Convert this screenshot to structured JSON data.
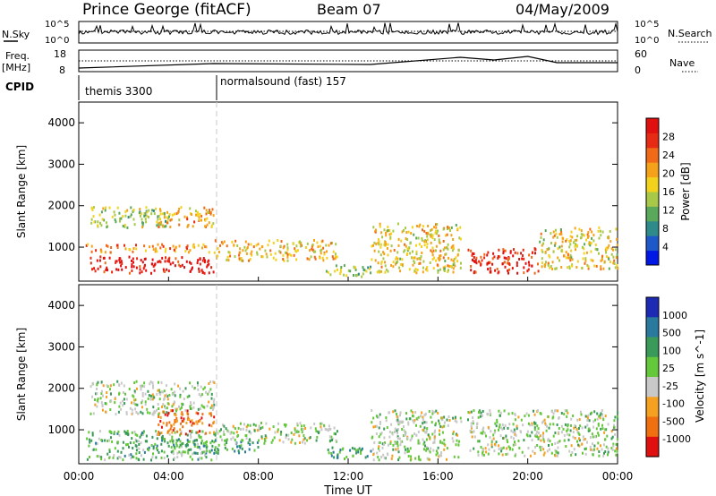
{
  "header": {
    "station": "Prince George (fitACF)",
    "beam": "Beam 07",
    "date": "04/May/2009"
  },
  "sky_panel": {
    "left_label": "N.Sky",
    "right_label": "N.Search",
    "ticks": [
      "10^5",
      "10^0"
    ]
  },
  "freq_panel": {
    "left_label_line1": "Freq.",
    "left_label_line2": "[MHz]",
    "left_ticks": [
      "18",
      "8"
    ],
    "right_label": "Nave",
    "right_ticks": [
      "60",
      "0"
    ]
  },
  "cpid_panel": {
    "label": "CPID",
    "segments": [
      {
        "name": "themis 3300",
        "start_hour": 0
      },
      {
        "name": "normalsound (fast) 157",
        "start_hour": 6
      }
    ]
  },
  "x_axis": {
    "label": "Time UT",
    "ticks": [
      "00:00",
      "04:00",
      "08:00",
      "12:00",
      "16:00",
      "20:00",
      "00:00"
    ],
    "range_hours": [
      0,
      24
    ]
  },
  "chart_data": [
    {
      "type": "heatmap",
      "title": "Power",
      "ylabel": "Slant Range [km]",
      "yticks": [
        "1000",
        "2000",
        "3000",
        "4000"
      ],
      "ylim": [
        180,
        4500
      ],
      "xlim_hours": [
        0,
        24
      ],
      "colorbar": {
        "label": "Power [dB]",
        "ticks": [
          "4",
          "8",
          "12",
          "16",
          "20",
          "24",
          "28"
        ],
        "colors": [
          "#0018e6",
          "#1f58c8",
          "#2f8a8a",
          "#5aa85a",
          "#a8c848",
          "#f2d21c",
          "#f5a21a",
          "#f06a18",
          "#e62a14",
          "#e01010"
        ]
      },
      "scatter_bands": [
        {
          "t": [
            0.5,
            6.0
          ],
          "r": [
            400,
            800
          ],
          "level": 0.95
        },
        {
          "t": [
            0.3,
            5.8
          ],
          "r": [
            900,
            1100
          ],
          "level": 0.7
        },
        {
          "t": [
            0.5,
            4.0
          ],
          "r": [
            1500,
            2000
          ],
          "level": 0.45
        },
        {
          "t": [
            3.5,
            6.0
          ],
          "r": [
            1500,
            2000
          ],
          "level": 0.65
        },
        {
          "t": [
            6.0,
            11.5
          ],
          "r": [
            700,
            1200
          ],
          "level": 0.6
        },
        {
          "t": [
            11.0,
            13.0
          ],
          "r": [
            300,
            600
          ],
          "level": 0.4
        },
        {
          "t": [
            13.0,
            17.0
          ],
          "r": [
            400,
            1600
          ],
          "level": 0.55
        },
        {
          "t": [
            17.3,
            20.5
          ],
          "r": [
            400,
            1000
          ],
          "level": 0.9
        },
        {
          "t": [
            20.5,
            24.0
          ],
          "r": [
            500,
            1500
          ],
          "level": 0.55
        }
      ]
    },
    {
      "type": "heatmap",
      "title": "Velocity",
      "ylabel": "Slant Range [km]",
      "yticks": [
        "1000",
        "2000",
        "3000",
        "4000"
      ],
      "ylim": [
        180,
        4500
      ],
      "xlim_hours": [
        0,
        24
      ],
      "colorbar": {
        "label": "Velocity [m s^-1]",
        "ticks": [
          "1000",
          "500",
          "100",
          "25",
          "-25",
          "-100",
          "-500",
          "-1000"
        ],
        "colors": [
          "#1c2ab4",
          "#2a7aa0",
          "#3a9a5a",
          "#64c83a",
          "#c8c8c8",
          "#f5a020",
          "#f07010",
          "#e01010"
        ]
      },
      "scatter_bands": [
        {
          "t": [
            0.3,
            6.0
          ],
          "r": [
            300,
            1000
          ],
          "level": 0.4
        },
        {
          "t": [
            0.5,
            6.0
          ],
          "r": [
            1400,
            2200
          ],
          "level": 0.5
        },
        {
          "t": [
            3.5,
            6.0
          ],
          "r": [
            900,
            1500
          ],
          "level": 0.8
        },
        {
          "t": [
            4.0,
            8.0
          ],
          "r": [
            450,
            800
          ],
          "level": 0.3
        },
        {
          "t": [
            6.0,
            11.5
          ],
          "r": [
            700,
            1200
          ],
          "level": 0.5
        },
        {
          "t": [
            11.0,
            13.0
          ],
          "r": [
            300,
            600
          ],
          "level": 0.3
        },
        {
          "t": [
            13.0,
            17.0
          ],
          "r": [
            300,
            1500
          ],
          "level": 0.5
        },
        {
          "t": [
            17.3,
            24.0
          ],
          "r": [
            400,
            1500
          ],
          "level": 0.5
        }
      ]
    }
  ]
}
